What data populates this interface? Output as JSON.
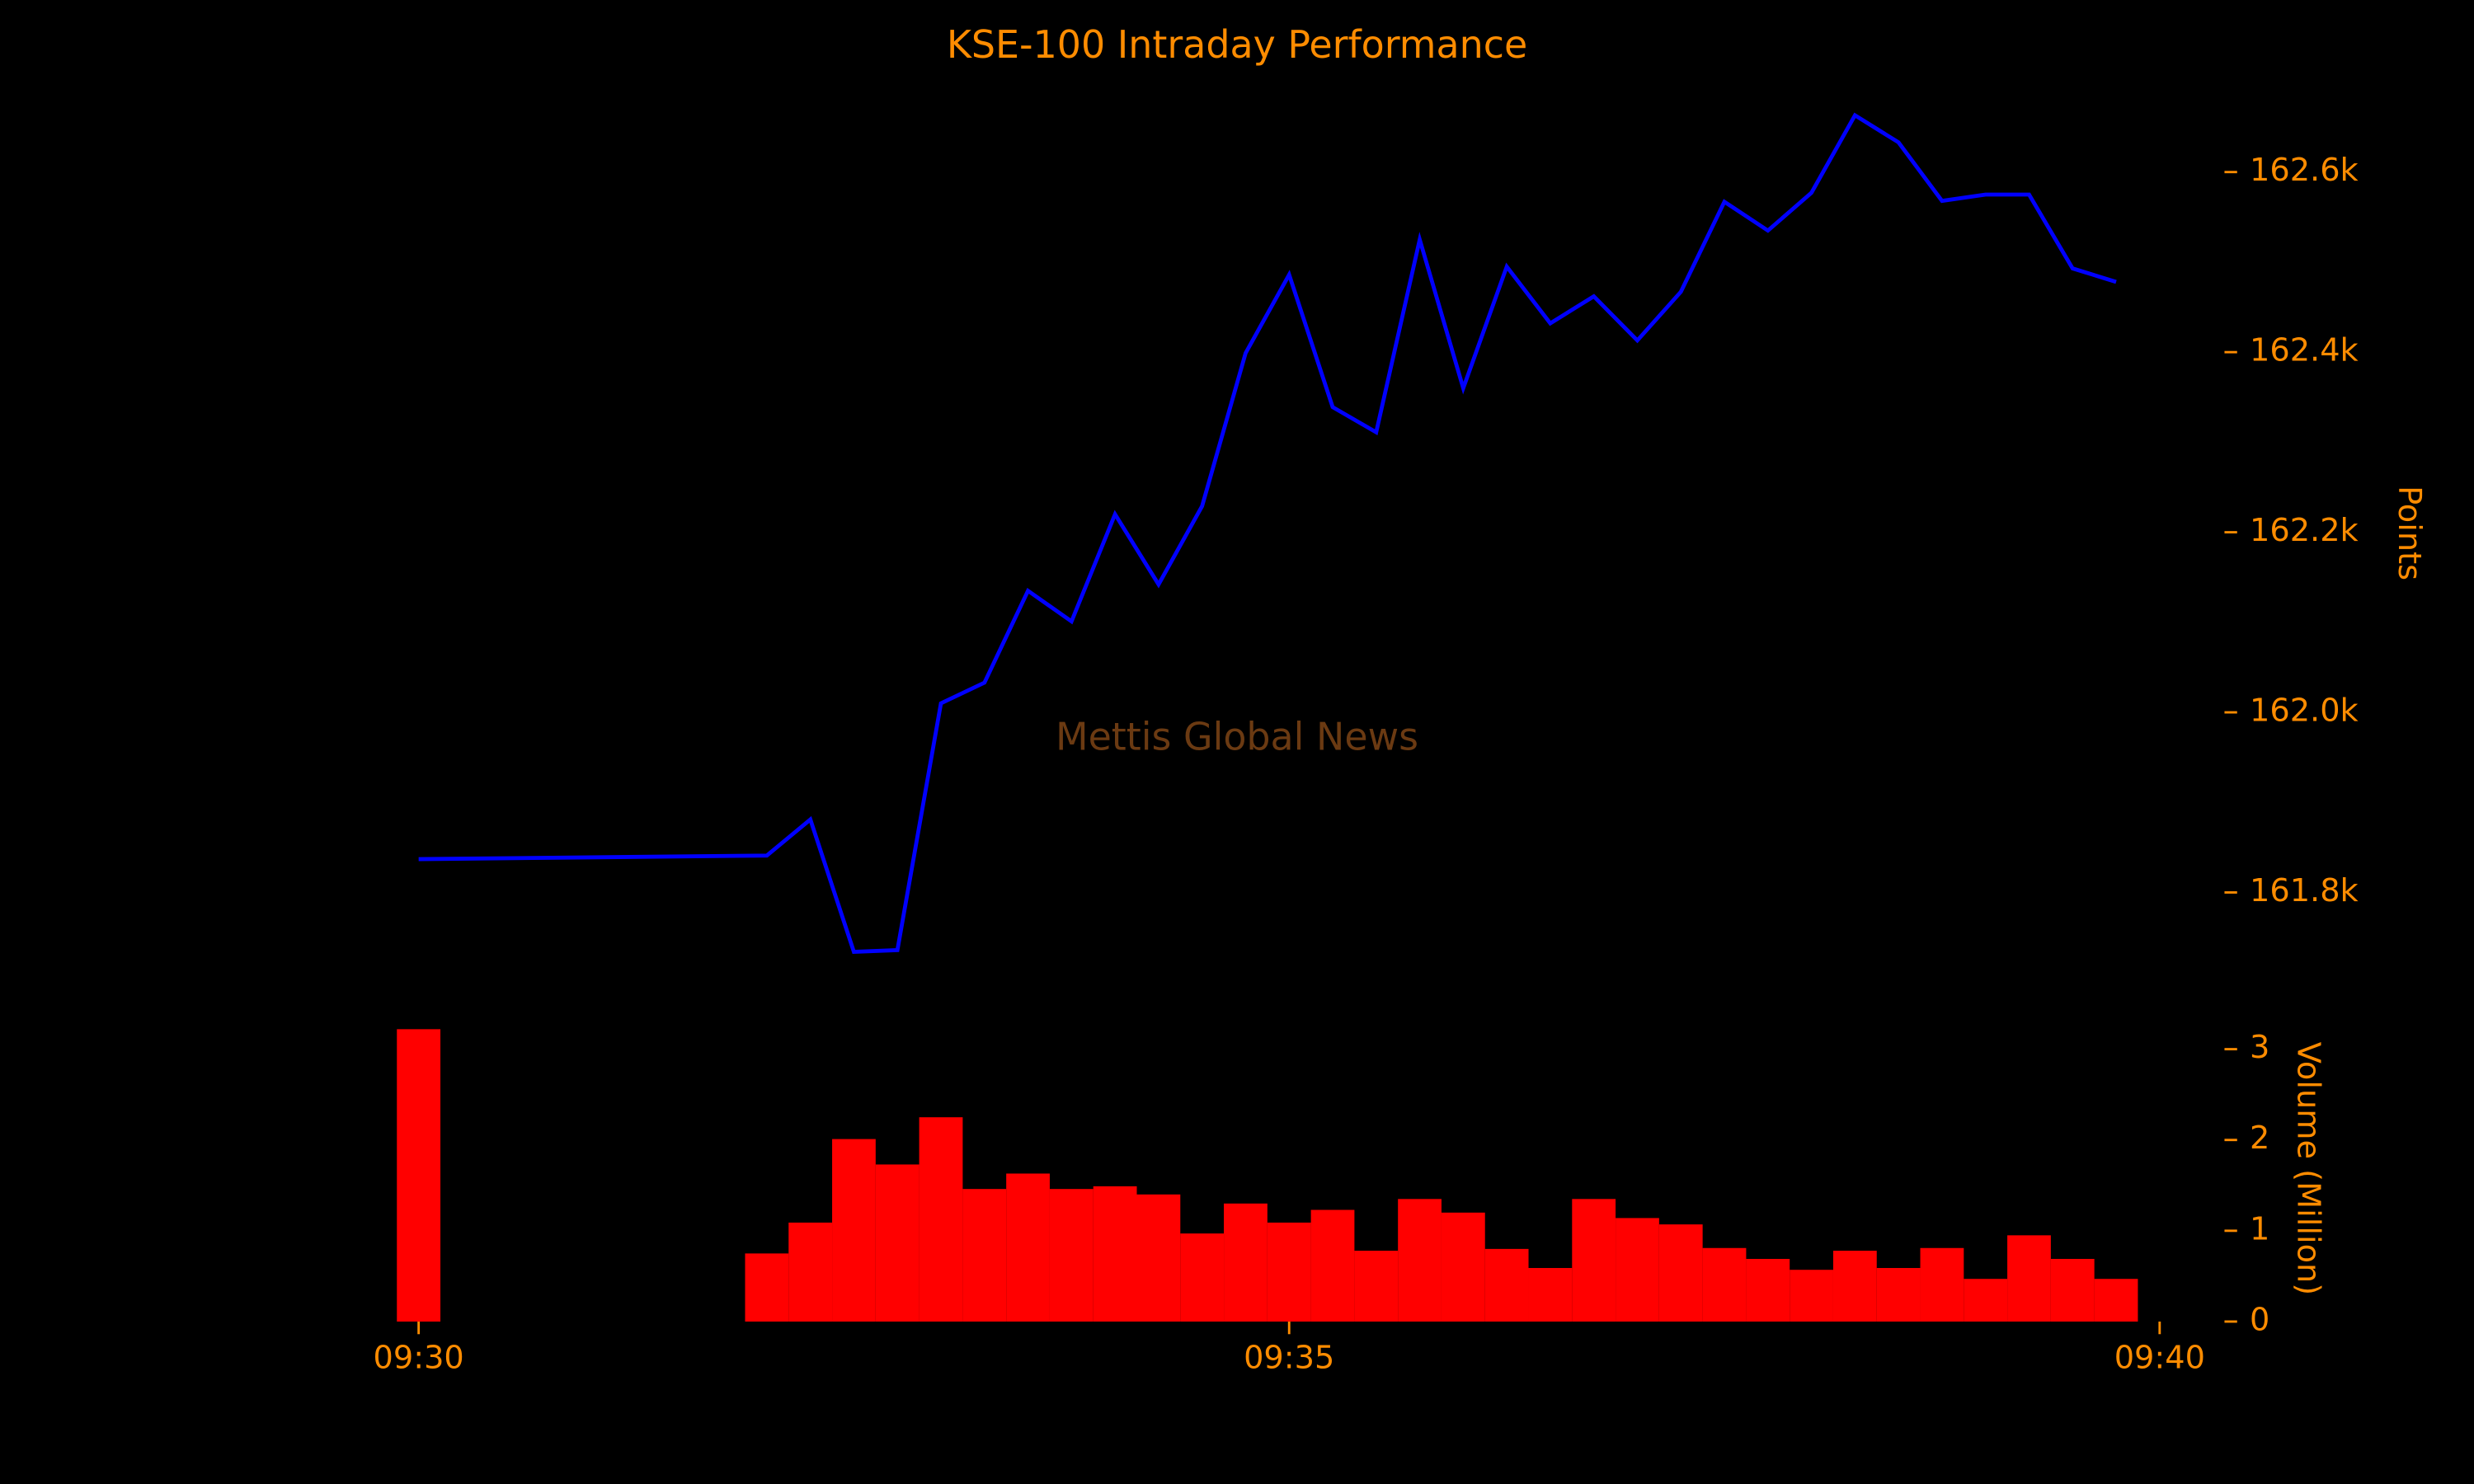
{
  "chart_data": [
    {
      "type": "line",
      "title": "KSE-100 Intraday Performance",
      "ylabel": "Points",
      "annotation": "Mettis Global News",
      "color": "#0000ff",
      "x": [
        0,
        2,
        2.25,
        2.5,
        2.75,
        3,
        3.25,
        3.5,
        3.75,
        4,
        4.25,
        4.5,
        4.75,
        5,
        5.25,
        5.5,
        5.75,
        6,
        6.25,
        6.5,
        6.75,
        7,
        7.25,
        7.5,
        7.75,
        8,
        8.25,
        8.5,
        8.75,
        9,
        9.25,
        9.5,
        9.75
      ],
      "values": [
        161837,
        161841,
        161881,
        161734,
        161736,
        162010,
        162033,
        162135,
        162101,
        162220,
        162142,
        162229,
        162399,
        162486,
        162339,
        162311,
        162525,
        162360,
        162495,
        162432,
        162462,
        162413,
        162467,
        162567,
        162535,
        162577,
        162663,
        162633,
        162568,
        162575,
        162575,
        162493,
        162478
      ],
      "xlim": [
        -0.6,
        10.3
      ],
      "ylim": [
        161700,
        162700
      ],
      "yticks": [
        {
          "value": 161800,
          "label": "161.8k"
        },
        {
          "value": 162000,
          "label": "162.0k"
        },
        {
          "value": 162200,
          "label": "162.2k"
        },
        {
          "value": 162400,
          "label": "162.4k"
        },
        {
          "value": 162600,
          "label": "162.6k"
        }
      ]
    },
    {
      "type": "bar",
      "ylabel": "Volume (Million)",
      "color": "#ff0000",
      "x": [
        0,
        2,
        2.25,
        2.5,
        2.75,
        3,
        3.25,
        3.5,
        3.75,
        4,
        4.25,
        4.5,
        4.75,
        5,
        5.25,
        5.5,
        5.75,
        6,
        6.25,
        6.5,
        6.75,
        7,
        7.25,
        7.5,
        7.75,
        8,
        8.25,
        8.5,
        8.75,
        9,
        9.25,
        9.5,
        9.75
      ],
      "values": [
        3.22,
        0.75,
        1.09,
        2.01,
        1.73,
        2.25,
        1.46,
        1.63,
        1.46,
        1.49,
        1.4,
        0.97,
        1.3,
        1.09,
        1.23,
        0.78,
        1.35,
        1.2,
        0.8,
        0.59,
        1.35,
        1.14,
        1.07,
        0.81,
        0.69,
        0.57,
        0.78,
        0.59,
        0.81,
        0.47,
        0.95,
        0.69,
        0.47
      ],
      "bar_width": 0.25,
      "xlim": [
        -0.6,
        10.3
      ],
      "ylim": [
        0,
        3.3
      ],
      "xticks": [
        {
          "value": 0,
          "label": "09:30"
        },
        {
          "value": 5,
          "label": "09:35"
        },
        {
          "value": 10,
          "label": "09:40"
        }
      ],
      "yticks": [
        0,
        1,
        2,
        3
      ]
    }
  ]
}
